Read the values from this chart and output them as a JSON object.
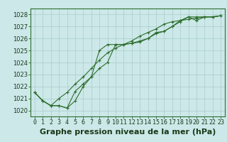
{
  "xlabel_label": "Graphe pression niveau de la mer (hPa)",
  "bg_color": "#cce8e8",
  "grid_color": "#aacccc",
  "line_color": "#2d6e2d",
  "x_ticks": [
    0,
    1,
    2,
    3,
    4,
    5,
    6,
    7,
    8,
    9,
    10,
    11,
    12,
    13,
    14,
    15,
    16,
    17,
    18,
    19,
    20,
    21,
    22,
    23
  ],
  "ylim": [
    1019.5,
    1028.5
  ],
  "xlim": [
    -0.5,
    23.5
  ],
  "yticks": [
    1020,
    1021,
    1022,
    1023,
    1024,
    1025,
    1026,
    1027,
    1028
  ],
  "line1": [
    1021.5,
    1020.8,
    1020.4,
    1020.4,
    1020.2,
    1020.8,
    1022.0,
    1022.8,
    1025.0,
    1025.5,
    1025.5,
    1025.5,
    1025.6,
    1025.8,
    1026.0,
    1026.5,
    1026.6,
    1027.0,
    1027.5,
    1027.8,
    1027.5,
    1027.8,
    1027.8,
    1027.9
  ],
  "line2": [
    1021.5,
    1020.8,
    1020.4,
    1021.0,
    1021.5,
    1022.2,
    1022.8,
    1023.5,
    1024.2,
    1024.8,
    1025.2,
    1025.5,
    1025.8,
    1026.2,
    1026.5,
    1026.8,
    1027.2,
    1027.4,
    1027.5,
    1027.6,
    1027.7,
    1027.8,
    1027.8,
    1027.9
  ],
  "line3": [
    1021.5,
    1020.8,
    1020.4,
    1020.4,
    1020.2,
    1021.6,
    1022.2,
    1022.8,
    1023.5,
    1024.0,
    1025.5,
    1025.5,
    1025.6,
    1025.7,
    1026.0,
    1026.4,
    1026.6,
    1027.0,
    1027.4,
    1027.8,
    1027.8,
    1027.8,
    1027.8,
    1027.9
  ],
  "marker": "+",
  "markersize": 3,
  "linewidth": 0.8,
  "xlabel_fontsize": 8,
  "tick_fontsize": 6,
  "ytick_fontsize": 6
}
